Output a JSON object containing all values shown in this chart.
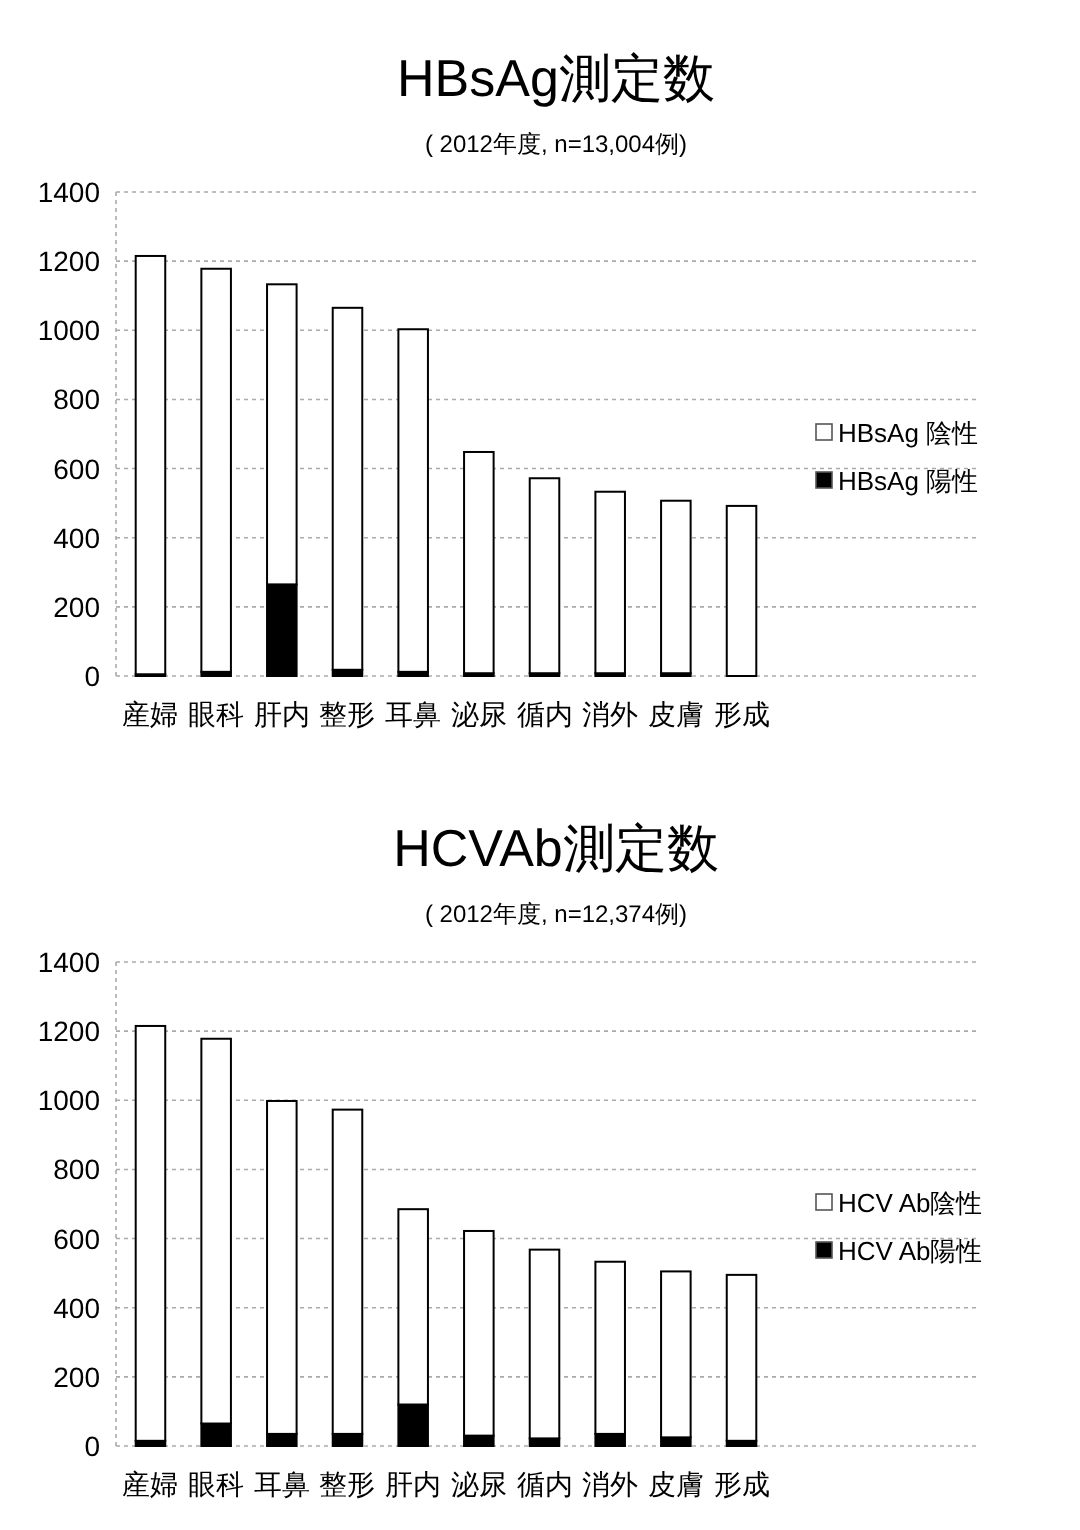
{
  "chart_data": [
    {
      "type": "bar",
      "title": "HBsAg測定数",
      "subtitle": "( 2012年度, n=13,004例)",
      "categories": [
        "産婦",
        "眼科",
        "肝内",
        "整形",
        "耳鼻",
        "泌尿",
        "循内",
        "消外",
        "皮膚",
        "形成"
      ],
      "stacked": true,
      "ylim": [
        0,
        1400
      ],
      "yticks": [
        0,
        200,
        400,
        600,
        800,
        1000,
        1200,
        1400
      ],
      "grid": "y",
      "legend": "right",
      "series": [
        {
          "name": "HBsAg 陽性",
          "color": "#000000",
          "values": [
            5,
            12,
            265,
            18,
            12,
            8,
            8,
            8,
            8,
            null
          ]
        },
        {
          "name": "HBsAg 陰性",
          "color": "#ffffff",
          "values": [
            1210,
            1166,
            868,
            1047,
            991,
            640,
            564,
            525,
            499,
            492
          ]
        }
      ]
    },
    {
      "type": "bar",
      "title": "HCVAb測定数",
      "subtitle": "( 2012年度, n=12,374例)",
      "categories": [
        "産婦",
        "眼科",
        "耳鼻",
        "整形",
        "肝内",
        "泌尿",
        "循内",
        "消外",
        "皮膚",
        "形成"
      ],
      "stacked": true,
      "ylim": [
        0,
        1400
      ],
      "yticks": [
        0,
        200,
        400,
        600,
        800,
        1000,
        1200,
        1400
      ],
      "grid": "y",
      "legend": "right",
      "series": [
        {
          "name": "HCV Ab陽性",
          "color": "#000000",
          "values": [
            15,
            65,
            35,
            35,
            120,
            30,
            22,
            35,
            25,
            15
          ]
        },
        {
          "name": "HCV Ab陰性",
          "color": "#ffffff",
          "values": [
            1200,
            1113,
            963,
            938,
            565,
            592,
            546,
            498,
            480,
            480
          ]
        }
      ]
    }
  ]
}
